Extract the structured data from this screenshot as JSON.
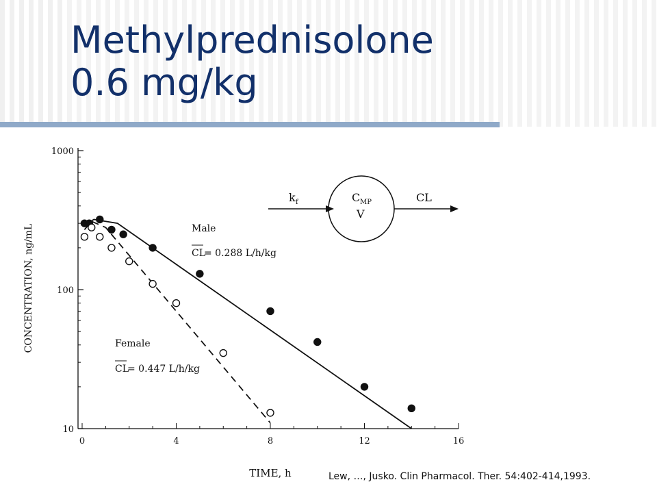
{
  "slide": {
    "title_line1": "Methylprednisolone",
    "title_line2": "0.6 mg/kg",
    "citation": "Lew, …, Jusko. Clin Pharmacol. Ther. 54:402-414,1993."
  },
  "diagram": {
    "input_label": "k",
    "input_sub": "f",
    "compartment_top": "C",
    "compartment_top_sub": "MP",
    "compartment_bottom": "V",
    "output_label": "CL"
  },
  "chart_data": {
    "type": "scatter",
    "xlabel": "TIME, h",
    "ylabel": "CONCENTRATION, ng/mL",
    "xlim": [
      0,
      16
    ],
    "ylim": [
      10,
      1000
    ],
    "yscale": "log",
    "x_ticks": [
      "0",
      "4",
      "8",
      "12",
      "16"
    ],
    "y_ticks": [
      "10",
      "100",
      "1000"
    ],
    "annotations": [
      {
        "label": "Male",
        "cl_prefix": "CL",
        "cl_value": " = 0.288 L/h/kg"
      },
      {
        "label": "Female",
        "cl_prefix": "CL",
        "cl_value": " = 0.447 L/h/kg"
      }
    ],
    "series": [
      {
        "marker": "filled",
        "line": "solid",
        "x": [
          0.1,
          0.3,
          0.75,
          1.25,
          1.75,
          3,
          5,
          8,
          10,
          12,
          14
        ],
        "y": [
          300,
          300,
          320,
          270,
          250,
          200,
          130,
          70,
          42,
          20,
          14
        ],
        "fit_x": [
          0.1,
          0.5,
          1.5,
          14.0
        ],
        "fit_y": [
          290,
          320,
          300,
          10
        ]
      },
      {
        "marker": "open",
        "line": "dashed",
        "x": [
          0.1,
          0.4,
          0.75,
          1.25,
          2,
          3,
          4,
          6,
          8
        ],
        "y": [
          240,
          280,
          240,
          200,
          160,
          110,
          80,
          35,
          13
        ],
        "fit_x": [
          0.1,
          0.4,
          1.0,
          8.0
        ],
        "fit_y": [
          270,
          310,
          280,
          11
        ]
      }
    ]
  }
}
